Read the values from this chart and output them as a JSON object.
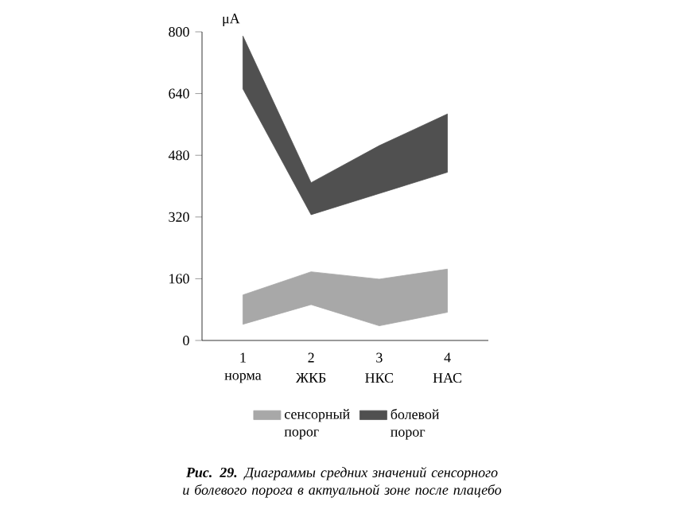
{
  "chart_data": {
    "type": "area",
    "title": "**Рис. 29.** Диаграммы средних значений сенсорного и болевого порога в актуальной зоне после плацебо",
    "ylabel": "μA",
    "x": [
      1,
      2,
      3,
      4
    ],
    "xlim": [
      0.4,
      4.6
    ],
    "xticks": [
      1,
      2,
      3,
      4
    ],
    "annotations": [
      "норма",
      "ЖКБ",
      "НКС",
      "НАС"
    ],
    "ylim": [
      0,
      800
    ],
    "yticks": [
      0,
      160,
      320,
      480,
      640,
      800
    ],
    "series": [
      {
        "name": "сенсорный порог",
        "color": "#a8a8a8",
        "values": [
          null,
          null,
          null,
          null
        ],
        "lower": [
          42,
          93,
          38,
          73
        ],
        "upper": [
          118,
          178,
          159,
          185
        ]
      },
      {
        "name": "болевой порог",
        "color": "#505050",
        "values": [
          null,
          null,
          null,
          null
        ],
        "lower": [
          652,
          326,
          381,
          436
        ],
        "upper": [
          789,
          409,
          505,
          587
        ]
      }
    ],
    "legend": "bottom",
    "grid": false
  }
}
